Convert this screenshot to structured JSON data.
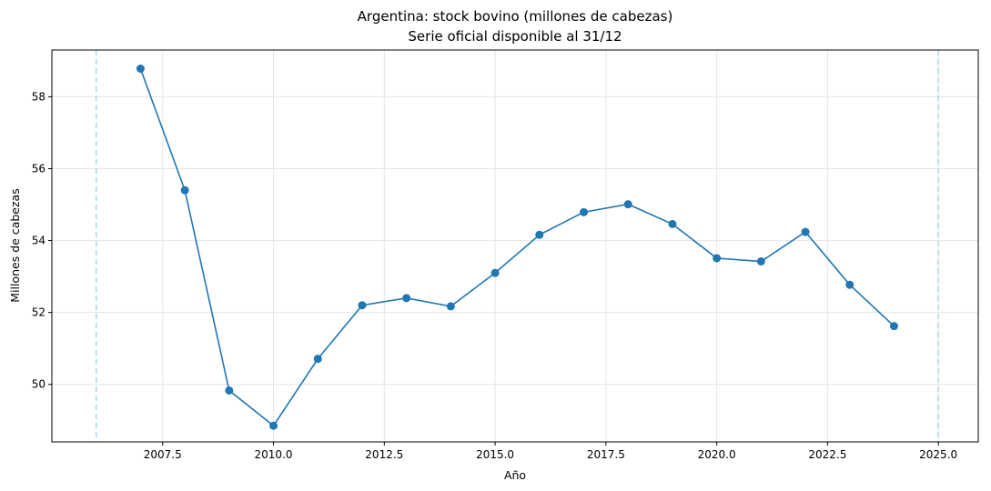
{
  "chart_data": {
    "type": "line",
    "title": "Argentina: stock bovino (millones de cabezas)",
    "subtitle": "Serie oficial disponible al 31/12",
    "xlabel": "Año",
    "ylabel": "Millones de cabezas",
    "xlim": [
      2005.0,
      2025.9
    ],
    "ylim": [
      48.4,
      59.3
    ],
    "xticks": [
      2007.5,
      2010.0,
      2012.5,
      2015.0,
      2017.5,
      2020.0,
      2022.5,
      2025.0
    ],
    "xtick_labels": [
      "2007.5",
      "2010.0",
      "2012.5",
      "2015.0",
      "2017.5",
      "2020.0",
      "2022.5",
      "2025.0"
    ],
    "yticks": [
      50,
      52,
      54,
      56,
      58
    ],
    "ytick_labels": [
      "50",
      "52",
      "54",
      "56",
      "58"
    ],
    "grid": true,
    "reference_lines_x": [
      2006,
      2025
    ],
    "colors": {
      "line": "#1f77b4",
      "grid": "#e6e6e6",
      "refline": "#a9d6ee"
    },
    "series": [
      {
        "x": [
          2007,
          2008,
          2009,
          2010,
          2011,
          2012,
          2013,
          2014,
          2015,
          2016,
          2017,
          2018,
          2019,
          2020,
          2021,
          2022,
          2023,
          2024
        ],
        "values": [
          58.78,
          55.4,
          49.83,
          48.85,
          50.71,
          52.2,
          52.4,
          52.17,
          53.1,
          54.16,
          54.79,
          55.01,
          54.46,
          53.51,
          53.42,
          54.24,
          52.77,
          51.62
        ]
      }
    ]
  }
}
